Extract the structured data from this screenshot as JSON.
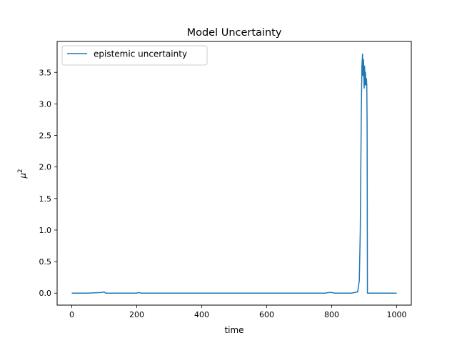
{
  "chart_data": {
    "type": "line",
    "title": "Model Uncertainty",
    "xlabel": "time",
    "ylabel_base": "μ",
    "ylabel_sup": "2",
    "xlim": [
      -45,
      1045
    ],
    "ylim": [
      -0.19,
      3.99
    ],
    "xticks": [
      0,
      200,
      400,
      600,
      800,
      1000
    ],
    "xtick_labels": [
      "0",
      "200",
      "400",
      "600",
      "800",
      "1000"
    ],
    "yticks": [
      0.0,
      0.5,
      1.0,
      1.5,
      2.0,
      2.5,
      3.0,
      3.5
    ],
    "ytick_labels": [
      "0.0",
      "0.5",
      "1.0",
      "1.5",
      "2.0",
      "2.5",
      "3.0",
      "3.5"
    ],
    "grid": false,
    "legend": {
      "position": "top-left",
      "entries": [
        "epistemic uncertainty"
      ]
    },
    "series": [
      {
        "name": "epistemic uncertainty",
        "color": "#1f77b4",
        "x": [
          0,
          50,
          90,
          100,
          104,
          110,
          200,
          205,
          215,
          400,
          600,
          780,
          790,
          800,
          810,
          860,
          880,
          885,
          888,
          891,
          893,
          895,
          896,
          897,
          898,
          899,
          900,
          901,
          902,
          903,
          904,
          905,
          906,
          907,
          908,
          909,
          910,
          1000
        ],
        "y": [
          0.0,
          0.0,
          0.01,
          0.02,
          0.0,
          0.0,
          0.0,
          0.01,
          0.0,
          0.0,
          0.0,
          0.0,
          0.01,
          0.01,
          0.0,
          0.0,
          0.02,
          0.2,
          1.0,
          2.8,
          3.6,
          3.79,
          3.45,
          3.55,
          3.7,
          3.4,
          3.25,
          3.6,
          3.5,
          3.3,
          3.5,
          3.35,
          3.3,
          3.4,
          3.3,
          2.7,
          0.0,
          0.0
        ]
      }
    ]
  }
}
